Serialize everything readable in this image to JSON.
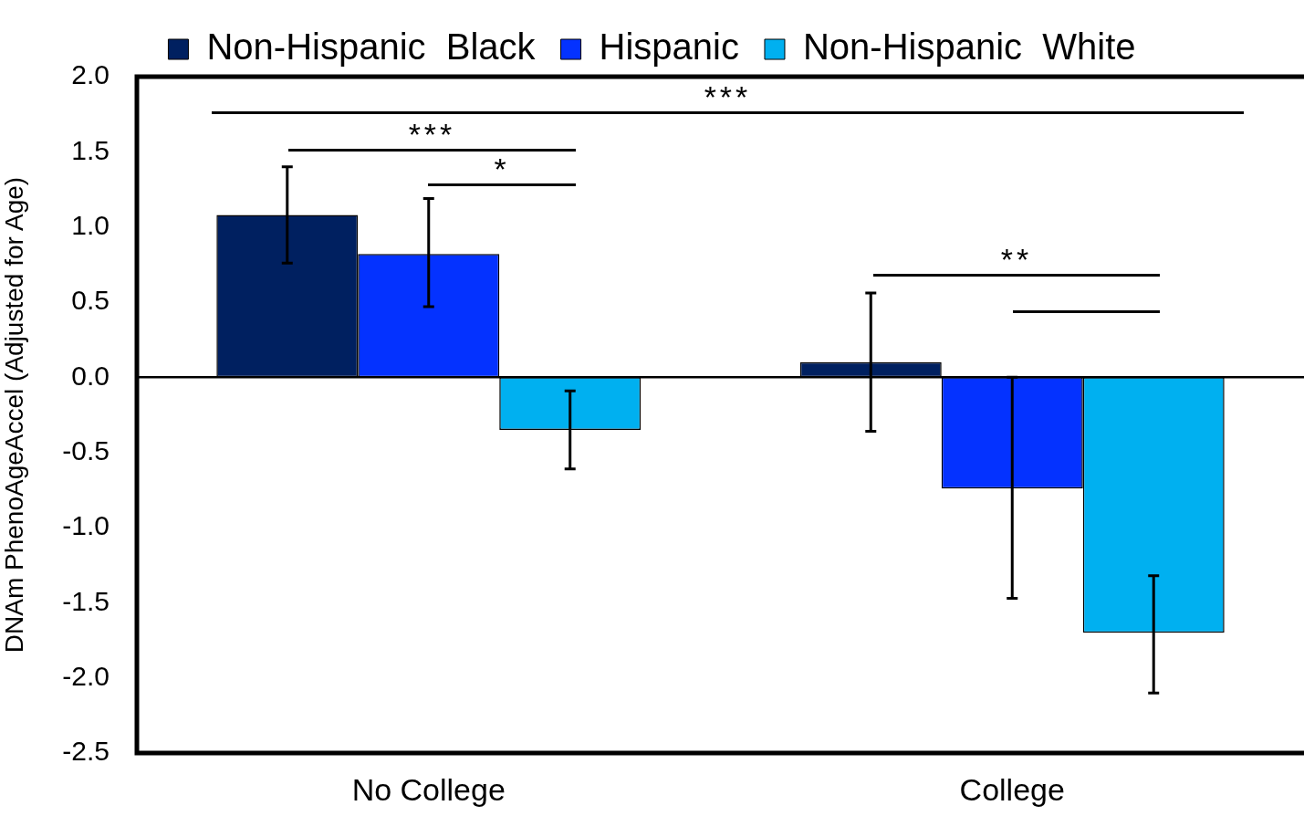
{
  "chart_data": {
    "type": "bar",
    "categories": [
      "No College",
      "College"
    ],
    "series": [
      {
        "name": "Non-Hispanic  Black",
        "color": "#002060",
        "values": [
          1.08,
          0.1
        ],
        "errors": [
          [
            0.76,
            1.4
          ],
          [
            -0.36,
            0.56
          ]
        ]
      },
      {
        "name": "Hispanic",
        "color": "#0432ff",
        "values": [
          0.82,
          -0.74
        ],
        "errors": [
          [
            0.47,
            1.19
          ],
          [
            -1.47,
            0.0
          ]
        ]
      },
      {
        "name": "Non-Hispanic  White",
        "color": "#00b0f0",
        "values": [
          -0.35,
          -1.7
        ],
        "errors": [
          [
            -0.61,
            -0.09
          ],
          [
            -2.1,
            -1.32
          ]
        ]
      }
    ],
    "ylabel": "DNAm PhenoAgeAccel (Adjusted for Age)",
    "ylim": [
      -2.5,
      2.0
    ],
    "yticks": [
      {
        "value": -2.5,
        "label": "-2.5"
      },
      {
        "value": -2.0,
        "label": "-2.0"
      },
      {
        "value": -1.5,
        "label": "-1.5"
      },
      {
        "value": -1.0,
        "label": "-1.0"
      },
      {
        "value": -0.5,
        "label": "-0.5"
      },
      {
        "value": 0,
        "label": "0.0"
      },
      {
        "value": 0.5,
        "label": "0.5"
      },
      {
        "value": 1.0,
        "label": "1.0"
      },
      {
        "value": 1.5,
        "label": "1.5"
      },
      {
        "value": 2.0,
        "label": "2.0"
      }
    ],
    "ref_lines": [
      {
        "axis": "y",
        "value": 0,
        "color": "#000000"
      }
    ],
    "annotations": [
      "***",
      "***",
      "*",
      "**"
    ],
    "grid": false,
    "legend": "top"
  }
}
